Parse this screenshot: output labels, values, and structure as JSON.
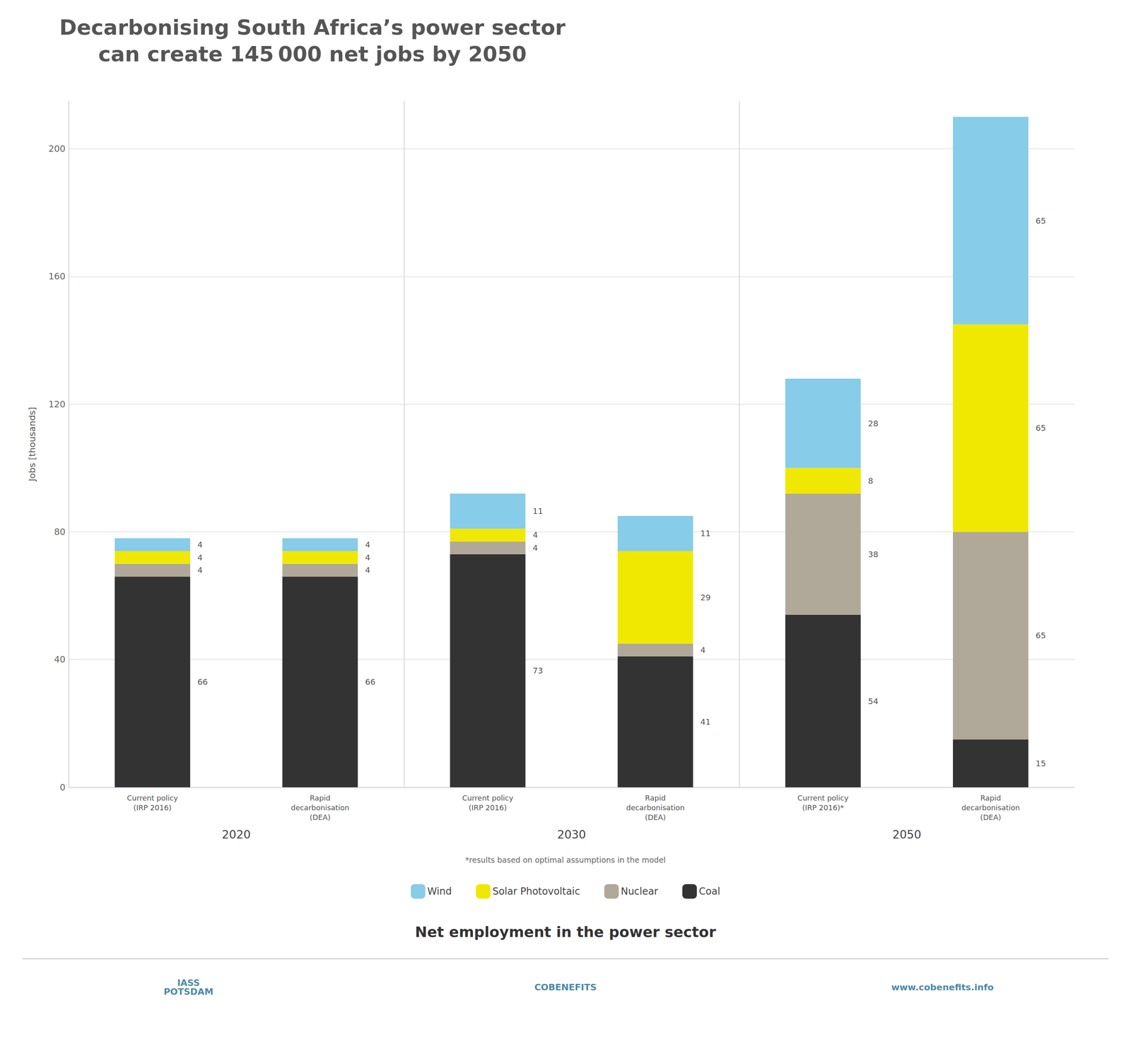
{
  "chart_data": {
    "type": "bar",
    "title": "Decarbonising South Africa’s power sector\ncan create 145 000 net jobs by 2050",
    "subtitle": "Net employment in the power sector",
    "ylabel": "Jobs [thousands]",
    "categories": [
      "Current policy\n(IRP 2016)",
      "Rapid\ndecarbonisation\n(DEA)",
      "Current policy\n(IRP 2016)",
      "Rapid\ndecarbonisation\n(DEA)",
      "Current policy\n(IRP 2016)*",
      "Rapid\ndecarbonisation\n(DEA)"
    ],
    "groups": [
      "2020",
      "2020",
      "2030",
      "2030",
      "2050",
      "2050"
    ],
    "series": [
      {
        "name": "Coal",
        "color": "#333333",
        "values": [
          66,
          66,
          73,
          41,
          54,
          15
        ]
      },
      {
        "name": "Nuclear",
        "color": "#b0a898",
        "values": [
          4,
          4,
          4,
          4,
          38,
          65
        ]
      },
      {
        "name": "Solar Photovoltaic",
        "color": "#f0e800",
        "values": [
          4,
          4,
          4,
          29,
          8,
          65
        ]
      },
      {
        "name": "Wind",
        "color": "#87cce8",
        "values": [
          4,
          4,
          11,
          11,
          28,
          65
        ]
      }
    ],
    "stacked": true,
    "data_labels": true,
    "ylim": [
      0,
      215
    ],
    "yticks": [
      0,
      40,
      80,
      120,
      160,
      200
    ],
    "grid": true,
    "legend": "bottom",
    "annotations": [
      "*results based on optimal assumptions in the model",
      "IASS\nPOTSDAM",
      "COBENEFITS",
      "www.cobenefits.info"
    ]
  }
}
